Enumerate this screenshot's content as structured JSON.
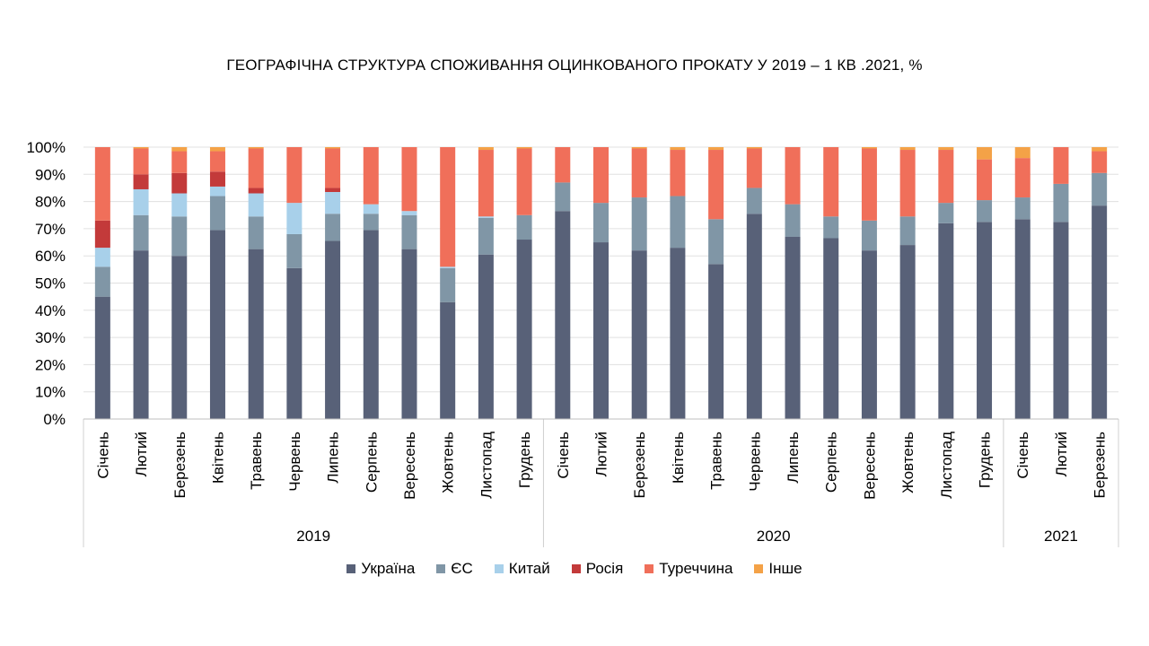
{
  "chart_data": {
    "type": "bar",
    "stacked": true,
    "title": "ГЕОГРАФІЧНА СТРУКТУРА СПОЖИВАННЯ ОЦИНКОВАНОГО ПРОКАТУ У 2019 – 1 КВ .2021, %",
    "xlabel": "",
    "ylabel": "",
    "ylim": [
      0,
      100
    ],
    "y_ticks": [
      "0%",
      "10%",
      "20%",
      "30%",
      "40%",
      "50%",
      "60%",
      "70%",
      "80%",
      "90%",
      "100%"
    ],
    "grid": true,
    "legend_position": "bottom",
    "groups": [
      {
        "label": "2019",
        "count": 12
      },
      {
        "label": "2020",
        "count": 12
      },
      {
        "label": "2021",
        "count": 3
      }
    ],
    "categories": [
      "Січень",
      "Лютий",
      "Березень",
      "Квітень",
      "Травень",
      "Червень",
      "Липень",
      "Серпень",
      "Вересень",
      "Жовтень",
      "Листопад",
      "Грудень",
      "Січень",
      "Лютий",
      "Березень",
      "Квітень",
      "Травень",
      "Червень",
      "Липень",
      "Серпень",
      "Вересень",
      "Жовтень",
      "Листопад",
      "Грудень",
      "Січень",
      "Лютий",
      "Березень"
    ],
    "series": [
      {
        "name": "Україна",
        "color": "#586178",
        "values": [
          45,
          62,
          60,
          69.5,
          62.5,
          55.5,
          65.5,
          69.5,
          62.5,
          43,
          60.5,
          66,
          76.5,
          65,
          62,
          63,
          57,
          75.5,
          67,
          66.5,
          62,
          64,
          72,
          72.5,
          73.5,
          72.5,
          78.5
        ]
      },
      {
        "name": "ЄС",
        "color": "#8096a6",
        "values": [
          11,
          13,
          14.5,
          12.5,
          12,
          12.5,
          10,
          6,
          12.5,
          12.5,
          13.5,
          9,
          10.5,
          14.5,
          19.5,
          19,
          16.5,
          9.5,
          12,
          8,
          11,
          10.5,
          7.5,
          8,
          8,
          14,
          12
        ]
      },
      {
        "name": "Китай",
        "color": "#a8d0ea",
        "values": [
          7,
          9.5,
          8.5,
          3.5,
          8.5,
          11.5,
          8,
          3.5,
          1.5,
          0.5,
          0.5,
          0,
          0,
          0,
          0,
          0,
          0,
          0,
          0,
          0,
          0,
          0,
          0,
          0,
          0,
          0,
          0
        ]
      },
      {
        "name": "Росія",
        "color": "#c33a3a",
        "values": [
          10,
          5.5,
          7.5,
          5.5,
          2,
          0,
          1.5,
          0,
          0,
          0,
          0,
          0,
          0,
          0,
          0,
          0,
          0,
          0,
          0,
          0,
          0,
          0,
          0,
          0,
          0,
          0,
          0
        ]
      },
      {
        "name": "Туреччина",
        "color": "#f06f5a",
        "values": [
          27,
          9.5,
          8,
          7.5,
          14.5,
          20.5,
          14.5,
          21,
          23.5,
          44,
          24.5,
          24.5,
          13,
          20.5,
          18,
          17,
          25.5,
          14.5,
          21,
          25.5,
          26.5,
          24.5,
          19.5,
          15,
          14.5,
          13.5,
          8
        ]
      },
      {
        "name": "Інше",
        "color": "#f4a247",
        "values": [
          0,
          0.5,
          1.5,
          1.5,
          0.5,
          0,
          0.5,
          0,
          0,
          0,
          1,
          0.5,
          0,
          0,
          0.5,
          1,
          1,
          0.5,
          0,
          0,
          0.5,
          1,
          1,
          4.5,
          4,
          0,
          1.5
        ]
      }
    ]
  }
}
